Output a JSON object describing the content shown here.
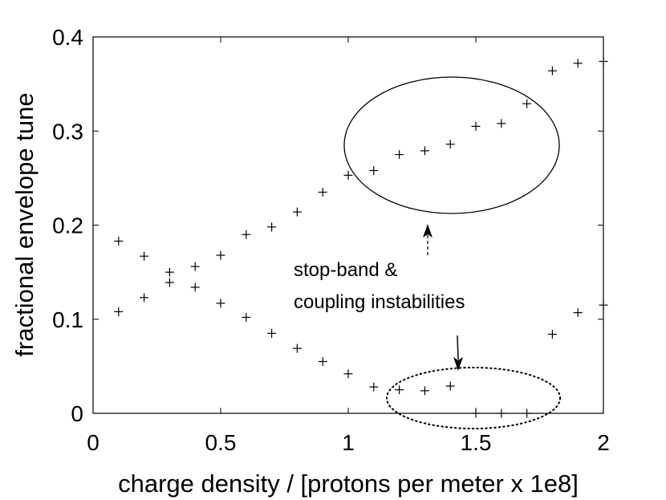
{
  "chart_data": {
    "type": "scatter",
    "xlabel": "charge density / [protons per meter x 1e8]",
    "ylabel": "fractional envelope tune",
    "xlim": [
      0,
      2
    ],
    "ylim": [
      0,
      0.4
    ],
    "x_ticks": [
      0,
      0.5,
      1,
      1.5,
      2
    ],
    "y_ticks": [
      0,
      0.1,
      0.2,
      0.3,
      0.4
    ],
    "x_tick_labels": [
      "0",
      "0.5",
      "1",
      "1.5",
      "2"
    ],
    "y_tick_labels": [
      "0",
      "0.1",
      "0.2",
      "0.3",
      "0.4"
    ],
    "grid": false,
    "marker": "+",
    "series": [
      {
        "x": [
          0.1,
          0.2,
          0.3,
          0.4,
          0.5,
          0.6,
          0.7,
          0.8,
          0.9,
          1.0,
          1.1,
          1.2,
          1.3,
          1.4,
          1.5,
          1.6,
          1.7,
          1.8,
          1.9,
          2.0
        ],
        "values": [
          0.183,
          0.167,
          0.15,
          0.156,
          0.168,
          0.19,
          0.198,
          0.214,
          0.235,
          0.253,
          0.258,
          0.275,
          0.279,
          0.286,
          0.305,
          0.308,
          0.329,
          0.364,
          0.372,
          0.374
        ]
      },
      {
        "x": [
          0.1,
          0.2,
          0.3,
          0.4,
          0.5,
          0.6,
          0.7,
          0.8,
          0.9,
          1.0,
          1.1,
          1.2,
          1.3,
          1.4,
          1.5,
          1.6,
          1.7,
          1.8,
          1.9,
          2.0
        ],
        "values": [
          0.108,
          0.123,
          0.139,
          0.134,
          0.117,
          0.102,
          0.085,
          0.069,
          0.055,
          0.042,
          0.028,
          0.025,
          0.024,
          0.029,
          0.0,
          0.0,
          0.0,
          0.084,
          0.107,
          0.115
        ]
      }
    ],
    "annotations": {
      "text_line1": "stop-band &",
      "text_line2": "coupling instabilities"
    }
  }
}
